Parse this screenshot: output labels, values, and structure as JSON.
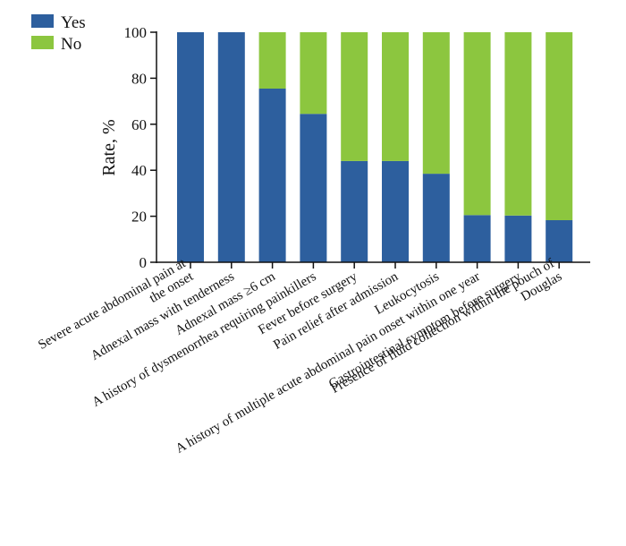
{
  "chart_data": {
    "type": "bar",
    "stacked": true,
    "categories": [
      [
        "Severe acute abdominal pain at",
        "the onset"
      ],
      [
        "Adnexal mass with tenderness"
      ],
      [
        "Adnexal mass ≥6 cm"
      ],
      [
        "A history of dysmenorrhea requiring painkillers"
      ],
      [
        "Fever before surgery"
      ],
      [
        "Pain relief after admission"
      ],
      [
        "Leukocytosis"
      ],
      [
        "A history of multiple acute abdominal pain onset within one year"
      ],
      [
        "Gastrointestinal symptom before surgery"
      ],
      [
        "Presence of fluid collection within the pouch of",
        "Douglas"
      ]
    ],
    "series": [
      {
        "name": "Yes",
        "color": "#2d5f9e",
        "values": [
          100,
          100,
          75.5,
          64.5,
          44,
          44,
          38.5,
          20.5,
          20.3,
          18.3
        ]
      },
      {
        "name": "No",
        "color": "#8cc63f",
        "values": [
          0,
          0,
          24.5,
          35.5,
          56,
          56,
          61.5,
          79.5,
          79.7,
          81.7
        ]
      }
    ],
    "xlabel": "",
    "ylabel": "Rate, %",
    "ylim": [
      0,
      100
    ],
    "yticks": [
      0,
      20,
      40,
      60,
      80,
      100
    ],
    "grid": false,
    "legend_position": "top-left"
  }
}
